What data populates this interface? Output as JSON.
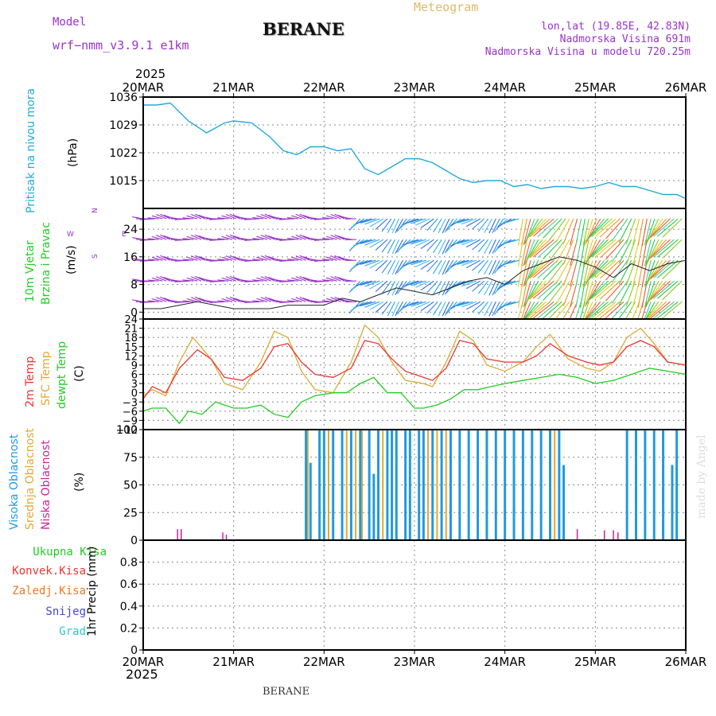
{
  "header": {
    "model_label": "Model",
    "model_name": "wrf−nmm_v3.9.1  e1km",
    "station": "BERANE",
    "meteogram_label": "Meteogram",
    "coords": "lon,lat (19.85E, 42.83N)",
    "elevation": "Nadmorska Visina 691m",
    "model_elevation": "Nadmorska Visina u modelu 720.25m",
    "year_top": "2025",
    "year_bottom": "2025",
    "footer_station": "BERANE",
    "watermark": "made by Angel"
  },
  "colors": {
    "pressure": "#22aadd",
    "temp2m": "#ee3333",
    "sfc_temp": "#ddaa33",
    "dewpt": "#22cc22",
    "wind_purple": "#9933cc",
    "high_cloud": "#2299dd",
    "mid_cloud": "#ddaa33",
    "low_cloud": "#cc2299",
    "total_precip": "#22cc22",
    "conv_precip": "#ee3333",
    "frozen": "#ee7722",
    "snow": "#4444dd",
    "graupel": "#22cccc"
  },
  "chart_data": [
    {
      "type": "line",
      "panel": "pressure",
      "x_ticks": [
        "20MAR",
        "21MAR",
        "22MAR",
        "23MAR",
        "24MAR",
        "25MAR",
        "26MAR"
      ],
      "ylabel_left": "Pritisak na nivou mora",
      "ylabel_unit": "(hPa)",
      "yticks": [
        1015,
        1022,
        1029,
        1036
      ],
      "ylim": [
        1008,
        1036
      ],
      "grid": true,
      "series": [
        {
          "name": "Pritisak na nivou mora",
          "x": [
            0,
            0.15,
            0.3,
            0.5,
            0.7,
            0.9,
            1.0,
            1.2,
            1.4,
            1.55,
            1.7,
            1.85,
            2.0,
            2.15,
            2.3,
            2.45,
            2.6,
            2.75,
            2.9,
            3.05,
            3.2,
            3.35,
            3.5,
            3.65,
            3.8,
            3.95,
            4.1,
            4.25,
            4.4,
            4.55,
            4.7,
            4.85,
            5.0,
            5.15,
            5.3,
            5.45,
            5.6,
            5.75,
            5.9,
            6.0
          ],
          "y": [
            1034,
            1034,
            1034.5,
            1030,
            1027,
            1029.5,
            1030,
            1029.5,
            1026,
            1022.5,
            1021.5,
            1023.5,
            1023.5,
            1022.5,
            1023,
            1018,
            1016.5,
            1018.5,
            1020.5,
            1020.5,
            1019.5,
            1017.5,
            1015.5,
            1014.5,
            1015,
            1015,
            1013.5,
            1014,
            1013,
            1013.5,
            1013.5,
            1013,
            1013.5,
            1014.5,
            1013.5,
            1013.5,
            1012.5,
            1011.5,
            1011.5,
            1010.5
          ]
        }
      ]
    },
    {
      "type": "scatter",
      "panel": "wind",
      "ylabel_left": "10m Vjetar",
      "ylabel_left2": "Brzina i Pravac",
      "ylabel_unit": "(m/s)",
      "compass": [
        "N",
        "E",
        "W",
        "S"
      ],
      "yticks": [
        0,
        8,
        16,
        24
      ],
      "ylim": [
        -2,
        30
      ],
      "grid": true,
      "series": [
        {
          "name": "Brzina",
          "x": [
            0,
            0.2,
            0.4,
            0.6,
            0.8,
            1.0,
            1.2,
            1.4,
            1.6,
            1.8,
            2.0,
            2.2,
            2.4,
            2.6,
            2.8,
            3.0,
            3.2,
            3.4,
            3.6,
            3.8,
            4.0,
            4.2,
            4.4,
            4.6,
            4.8,
            5.0,
            5.2,
            5.4,
            5.6,
            5.8,
            6.0
          ],
          "y": [
            1,
            1,
            2,
            3,
            2,
            1,
            1,
            1,
            2,
            2,
            2,
            4,
            3,
            5,
            7,
            6,
            5,
            7,
            9,
            10,
            8,
            12,
            14,
            16,
            15,
            13,
            10,
            14,
            12,
            14,
            15
          ]
        }
      ]
    },
    {
      "type": "line",
      "panel": "temperature",
      "ylabel_left": "2m Temp",
      "ylabel_left2": "SFC Temp",
      "ylabel_left3": "dewpt Temp",
      "ylabel_unit": "(C)",
      "yticks": [
        -12,
        -9,
        -6,
        -3,
        0,
        3,
        6,
        9,
        12,
        15,
        18,
        21,
        24
      ],
      "ylim": [
        -12,
        24
      ],
      "grid": true,
      "series": [
        {
          "name": "2m Temp",
          "x": [
            0,
            0.1,
            0.25,
            0.4,
            0.6,
            0.75,
            0.9,
            1.1,
            1.3,
            1.45,
            1.6,
            1.75,
            1.9,
            2.1,
            2.3,
            2.45,
            2.6,
            2.75,
            2.9,
            3.1,
            3.2,
            3.35,
            3.5,
            3.65,
            3.8,
            4.0,
            4.2,
            4.35,
            4.5,
            4.7,
            4.9,
            5.05,
            5.2,
            5.35,
            5.5,
            5.65,
            5.8,
            6.0
          ],
          "y": [
            -2,
            2,
            0,
            8,
            14,
            11,
            5,
            4,
            8,
            15,
            16,
            10,
            6,
            5,
            8,
            17,
            16,
            11,
            7,
            5,
            4,
            8,
            17,
            16,
            11,
            10,
            10,
            12,
            16,
            12,
            10,
            9,
            10,
            15,
            17,
            15,
            10,
            9
          ]
        },
        {
          "name": "SFC Temp",
          "x": [
            0,
            0.1,
            0.25,
            0.4,
            0.55,
            0.75,
            0.9,
            1.1,
            1.3,
            1.45,
            1.6,
            1.75,
            1.9,
            2.1,
            2.3,
            2.45,
            2.6,
            2.75,
            2.9,
            3.1,
            3.2,
            3.35,
            3.5,
            3.65,
            3.8,
            4.0,
            4.2,
            4.35,
            4.5,
            4.7,
            4.9,
            5.05,
            5.2,
            5.35,
            5.5,
            5.65,
            5.8,
            6.0
          ],
          "y": [
            -1,
            1,
            -1,
            10,
            18,
            11,
            3,
            1,
            10,
            20,
            18,
            7,
            1,
            0,
            10,
            22,
            18,
            10,
            4,
            3,
            2,
            10,
            20,
            17,
            9,
            7,
            10,
            15,
            19,
            11,
            8,
            7,
            10,
            18,
            21,
            16,
            10,
            9
          ]
        },
        {
          "name": "dewpt Temp",
          "x": [
            0,
            0.1,
            0.25,
            0.4,
            0.5,
            0.65,
            0.8,
            1.0,
            1.15,
            1.3,
            1.45,
            1.6,
            1.75,
            1.9,
            2.1,
            2.25,
            2.4,
            2.55,
            2.7,
            2.85,
            3.0,
            3.1,
            3.25,
            3.4,
            3.55,
            3.7,
            3.85,
            4.0,
            4.2,
            4.4,
            4.6,
            4.8,
            5.0,
            5.2,
            5.4,
            5.6,
            5.8,
            6.0
          ],
          "y": [
            -6,
            -5,
            -5,
            -10,
            -6,
            -7,
            -3,
            -5,
            -5,
            -4,
            -7,
            -8,
            -3,
            -1,
            0,
            0,
            3,
            5,
            0,
            0,
            -5,
            -5,
            -4,
            -2,
            1,
            1,
            2,
            3,
            4,
            5,
            6,
            5,
            3,
            4,
            6,
            8,
            7,
            6
          ]
        }
      ]
    },
    {
      "type": "bar",
      "panel": "cloud",
      "ylabel_left": "Visoka Oblacnost",
      "ylabel_left2": "Srednja Oblacnost",
      "ylabel_left3": "Niska Oblacnost",
      "ylabel_unit": "(%)",
      "yticks": [
        0,
        25,
        50,
        75,
        100
      ],
      "ylim": [
        0,
        100
      ],
      "grid": true,
      "series": [
        {
          "name": "Visoka Oblacnost",
          "x": [
            1.8,
            1.85,
            1.95,
            2.0,
            2.1,
            2.2,
            2.3,
            2.4,
            2.5,
            2.55,
            2.6,
            2.7,
            2.75,
            2.8,
            2.9,
            2.95,
            3.05,
            3.1,
            3.2,
            3.3,
            3.4,
            3.5,
            3.6,
            3.7,
            3.8,
            3.9,
            4.0,
            4.1,
            4.2,
            4.3,
            4.4,
            4.5,
            4.6,
            4.65,
            5.35,
            5.45,
            5.55,
            5.65,
            5.75,
            5.85,
            5.9
          ],
          "y": [
            100,
            70,
            100,
            100,
            100,
            100,
            100,
            100,
            100,
            60,
            100,
            100,
            100,
            100,
            100,
            100,
            100,
            100,
            100,
            100,
            100,
            100,
            100,
            100,
            100,
            100,
            100,
            100,
            100,
            100,
            100,
            100,
            100,
            68,
            100,
            100,
            100,
            100,
            100,
            68,
            100
          ]
        },
        {
          "name": "Srednja Oblacnost",
          "x": [
            1.82,
            2.05,
            2.25,
            2.35,
            2.42,
            2.65,
            3.15,
            3.25,
            3.35,
            4.55
          ],
          "y": [
            100,
            100,
            100,
            100,
            100,
            100,
            100,
            100,
            100,
            100
          ]
        },
        {
          "name": "Niska Oblacnost",
          "x": [
            0.38,
            0.42,
            0.88,
            0.92,
            4.8,
            5.1,
            5.2,
            5.25
          ],
          "y": [
            10,
            10,
            7,
            5,
            10,
            9,
            9,
            7
          ]
        }
      ]
    },
    {
      "type": "line",
      "panel": "precip",
      "ylabel_unit": "1hr Precip (mm)",
      "legend_names": [
        "Ukupna Kisa",
        "Konvek.Kisa",
        "Zaledj.Kisa",
        "Snijeg",
        "Grad"
      ],
      "yticks": [
        0,
        0.2,
        0.4,
        0.6,
        0.8
      ],
      "ylim": [
        0,
        1
      ],
      "grid": true,
      "series": [
        {
          "name": "Ukupna Kisa",
          "x": [
            0,
            1,
            2,
            3,
            4,
            5,
            6
          ],
          "y": [
            0,
            0,
            0,
            0,
            0,
            0,
            0
          ]
        }
      ]
    }
  ]
}
